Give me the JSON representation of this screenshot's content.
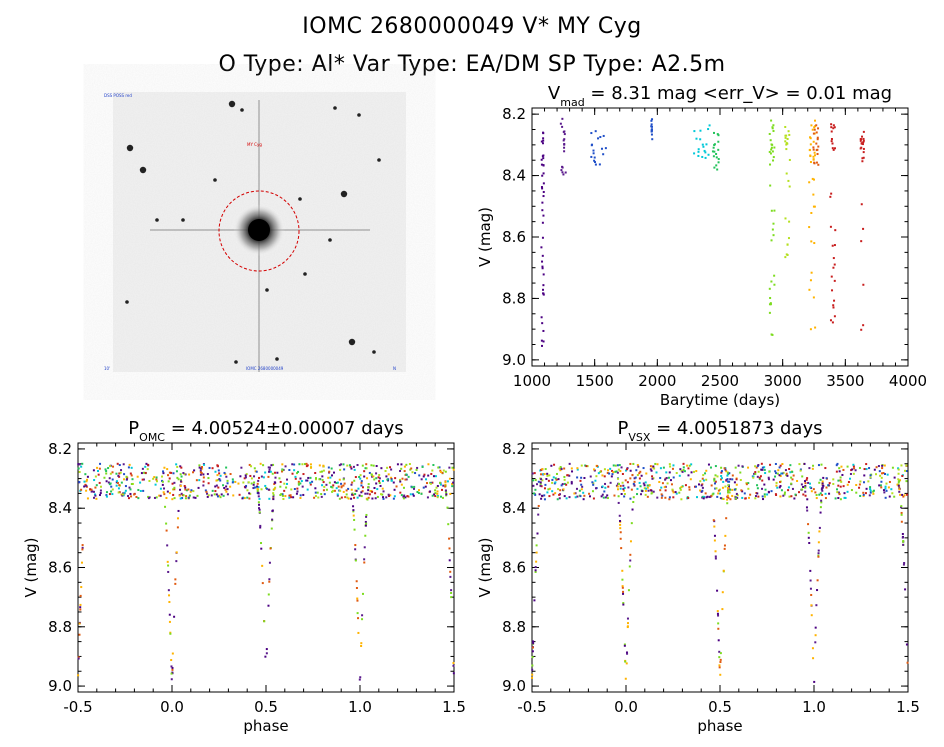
{
  "header": {
    "line1": "IOMC 2680000049    V* MY Cyg",
    "line2": "O Type: Al*  Var Type: EA/DM  SP Type: A2.5m"
  },
  "image_panel": {
    "target_label": "MY Cyg",
    "corner_label_tl": "DSS POSS red",
    "corner_label_bl": "10'",
    "corner_label_bc": "IOMC 2680000049",
    "corner_label_br": "N"
  },
  "colors": {
    "palette": [
      "#4b0082",
      "#5a1a8c",
      "#1f4fc8",
      "#00c8d8",
      "#22c35a",
      "#7ddc1f",
      "#b5e020",
      "#ffb300",
      "#e05a10",
      "#c81e1e"
    ],
    "circle": "#d40000"
  },
  "chart_data": [
    {
      "type": "scatter",
      "id": "lightcurve",
      "title_main": "V",
      "title_sub": "mad",
      "title_rest": " = 8.31 mag <err_V> = 0.01 mag",
      "xlabel": "Barytime (days)",
      "ylabel": "V (mag)",
      "xlim": [
        1000,
        4000
      ],
      "ylim": [
        9.02,
        8.18
      ],
      "xticks": [
        "1000",
        "1500",
        "2000",
        "2500",
        "3000",
        "3500",
        "4000"
      ],
      "yticks": [
        "8.2",
        "8.4",
        "8.6",
        "8.8",
        "9.0"
      ],
      "series": [
        {
          "x_range": [
            1075,
            1095
          ],
          "mags": [
            8.27,
            8.35,
            8.45,
            8.6,
            8.72,
            8.85,
            8.98
          ],
          "color": "#4b0082"
        },
        {
          "x_range": [
            1230,
            1270
          ],
          "mags": [
            8.24,
            8.3,
            8.38
          ],
          "color": "#5a1a8c"
        },
        {
          "x_range": [
            1460,
            1600
          ],
          "mags": [
            8.28,
            8.32,
            8.34
          ],
          "color": "#1f4fc8"
        },
        {
          "x_range": [
            1950,
            1960
          ],
          "mags": [
            8.24,
            8.26
          ],
          "color": "#1f4fc8"
        },
        {
          "x_range": [
            2290,
            2420
          ],
          "mags": [
            8.26,
            8.3,
            8.32
          ],
          "color": "#00c8d8"
        },
        {
          "x_range": [
            2440,
            2500
          ],
          "mags": [
            8.28,
            8.33,
            8.36
          ],
          "color": "#22c35a"
        },
        {
          "x_range": [
            2895,
            2935
          ],
          "mags": [
            8.24,
            8.3,
            8.34,
            8.6,
            8.8,
            8.98
          ],
          "color": "#7ddc1f"
        },
        {
          "x_range": [
            3020,
            3060
          ],
          "mags": [
            8.26,
            8.3,
            8.56,
            8.68
          ],
          "color": "#b5e020"
        },
        {
          "x_range": [
            3210,
            3260
          ],
          "mags": [
            8.24,
            8.3,
            8.34,
            8.5,
            8.7,
            8.92
          ],
          "color": "#ffb300"
        },
        {
          "x_range": [
            3240,
            3290
          ],
          "mags": [
            8.26,
            8.3,
            8.34
          ],
          "color": "#e05a10"
        },
        {
          "x_range": [
            3380,
            3420
          ],
          "mags": [
            8.25,
            8.3,
            8.64,
            8.78,
            8.88
          ],
          "color": "#c81e1e"
        },
        {
          "x_range": [
            3620,
            3650
          ],
          "mags": [
            8.28,
            8.3,
            8.33,
            8.92
          ],
          "color": "#c81e1e"
        }
      ]
    },
    {
      "type": "scatter",
      "id": "phase_omc",
      "title_main": "P",
      "title_sub": "OMC",
      "title_rest": " = 4.00524±0.00007 days",
      "xlabel": "phase",
      "ylabel": "V (mag)",
      "xlim": [
        -0.5,
        1.5
      ],
      "ylim": [
        9.02,
        8.18
      ],
      "xticks": [
        "-0.5",
        "0.0",
        "0.5",
        "1.0",
        "1.5"
      ],
      "yticks": [
        "8.2",
        "8.4",
        "8.6",
        "8.8",
        "9.0"
      ],
      "baseline_mag": 8.31,
      "primary_depth": 9.0,
      "primary_phase": 0.0,
      "secondary_depth": 8.98,
      "secondary_phase": 0.5,
      "eclipse_halfwidth": 0.05
    },
    {
      "type": "scatter",
      "id": "phase_vsx",
      "title_main": "P",
      "title_sub": "VSX",
      "title_rest": " = 4.0051873 days",
      "xlabel": "phase",
      "ylabel": "V (mag)",
      "xlim": [
        -0.5,
        1.5
      ],
      "ylim": [
        9.02,
        8.18
      ],
      "xticks": [
        "-0.5",
        "0.0",
        "0.5",
        "1.0",
        "1.5"
      ],
      "yticks": [
        "8.2",
        "8.4",
        "8.6",
        "8.8",
        "9.0"
      ],
      "baseline_mag": 8.31,
      "primary_depth": 9.0,
      "primary_phase": 0.0,
      "secondary_depth": 8.98,
      "secondary_phase": 0.5,
      "eclipse_halfwidth": 0.05
    }
  ]
}
